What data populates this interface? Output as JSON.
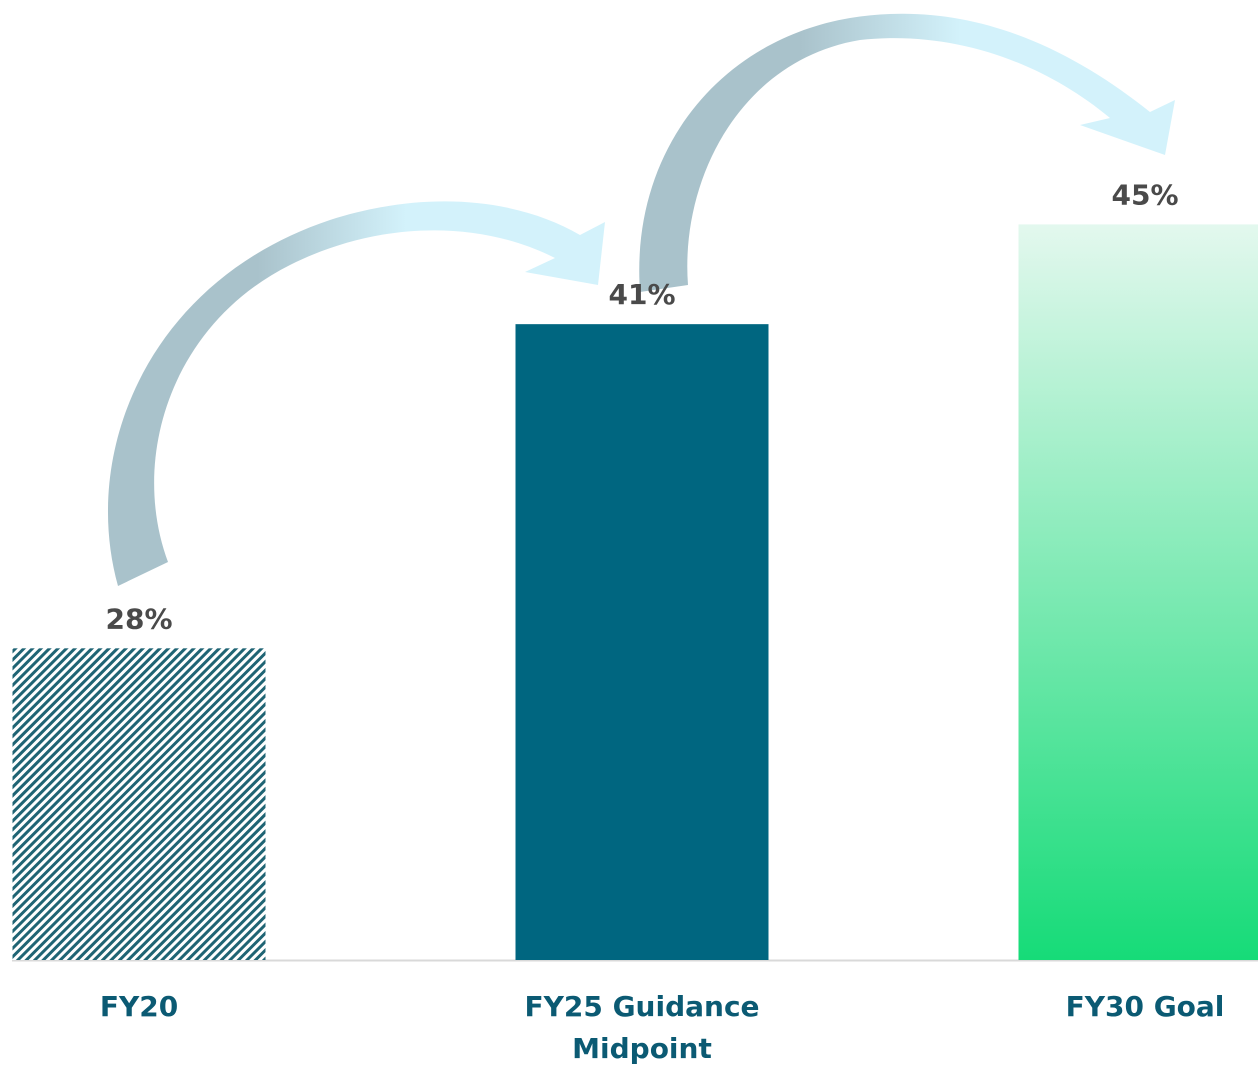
{
  "chart_data": {
    "type": "bar",
    "categories": [
      "FY20",
      "FY25 Guidance Midpoint",
      "FY30 Goal"
    ],
    "values": [
      28,
      41,
      45
    ],
    "value_labels": [
      "28%",
      "41%",
      "45%"
    ],
    "colors": [
      "#1f6474",
      "#006680",
      "#16db78"
    ],
    "ylim": [
      15.5,
      54
    ]
  }
}
